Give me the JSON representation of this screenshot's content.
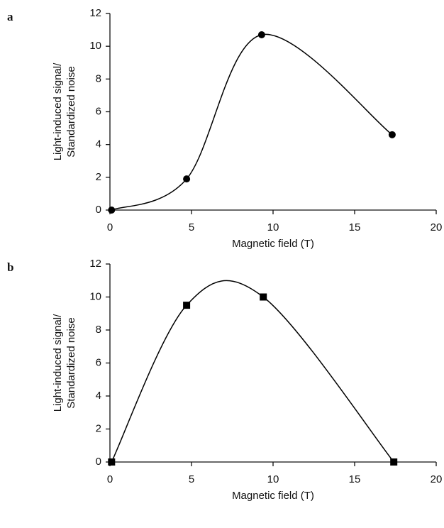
{
  "chart_data": [
    {
      "type": "scatter",
      "panel_label": "a",
      "xlabel": "Magnetic field (T)",
      "ylabel": [
        "Light-induced signal/",
        "Standardized noise"
      ],
      "x": [
        0.1,
        4.7,
        9.3,
        17.3
      ],
      "values": [
        0,
        1.9,
        10.7,
        4.6
      ],
      "marker": "circle",
      "color": "#000000",
      "smooth": true,
      "xlim": [
        0,
        20
      ],
      "ylim": [
        0,
        12
      ],
      "xticks": [
        0,
        5,
        10,
        15,
        20
      ],
      "yticks": [
        0,
        2,
        4,
        6,
        8,
        10,
        12
      ]
    },
    {
      "type": "scatter",
      "panel_label": "b",
      "xlabel": "Magnetic field (T)",
      "ylabel": [
        "Light-induced signal/",
        "Standardized noise"
      ],
      "x": [
        0.1,
        4.7,
        9.4,
        17.4
      ],
      "values": [
        0,
        9.5,
        10,
        0
      ],
      "marker": "square",
      "color": "#000000",
      "smooth": true,
      "xlim": [
        0,
        20
      ],
      "ylim": [
        0,
        12
      ],
      "xticks": [
        0,
        5,
        10,
        15,
        20
      ],
      "yticks": [
        0,
        2,
        4,
        6,
        8,
        10,
        12
      ]
    }
  ]
}
